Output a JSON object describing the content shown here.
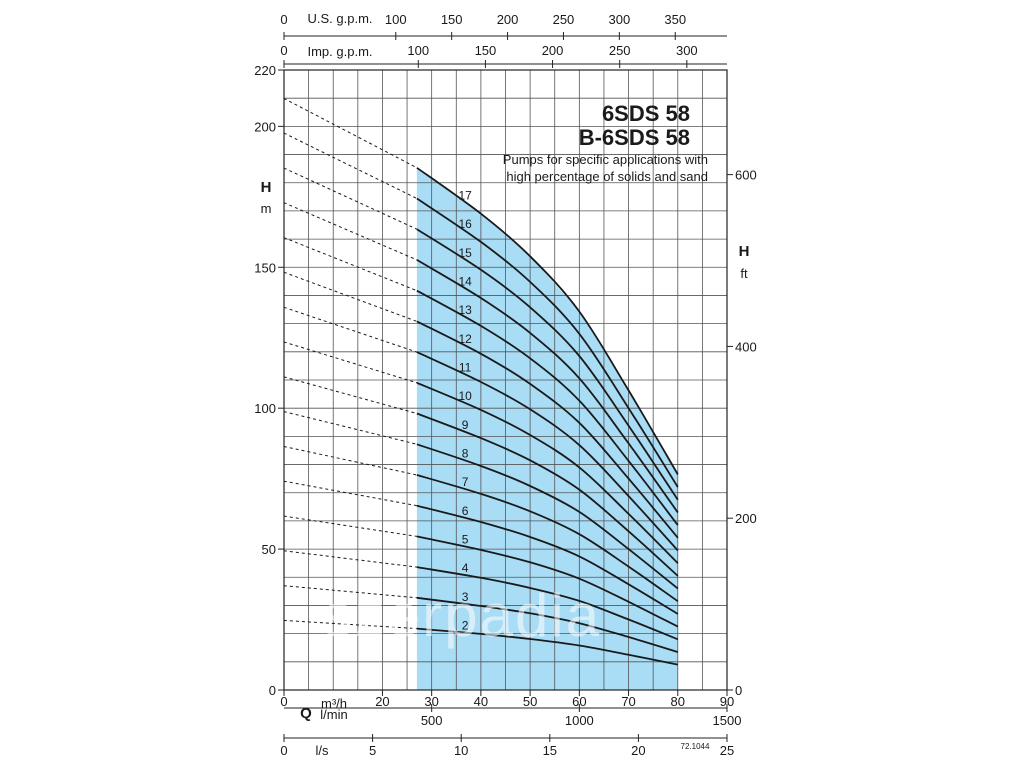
{
  "chart_data": {
    "type": "line",
    "title_lines": [
      "6SDS 58",
      "B-6SDS 58"
    ],
    "subtitle_lines": [
      "Pumps for specific applications with",
      "high percentage of solids and sand"
    ],
    "y_label": "H",
    "y_unit": "m",
    "y2_label": "H",
    "y2_unit": "ft",
    "ylim": [
      0,
      220
    ],
    "y_ticks": [
      0,
      50,
      100,
      150,
      200,
      220
    ],
    "y2_ticks": [
      0,
      200,
      400,
      600
    ],
    "x_label": "Q",
    "x_unit_top": "m³/h",
    "x_unit_bottom": "l/min",
    "xlim": [
      0,
      90
    ],
    "x_ticks_m3h": [
      0,
      20,
      30,
      40,
      50,
      60,
      70,
      80,
      90
    ],
    "x_ticks_lmin": [
      500,
      1000,
      1500
    ],
    "ls_label": "l/s",
    "x_ticks_ls": [
      0,
      5,
      10,
      15,
      20,
      25
    ],
    "usgpm_label": "U.S. g.p.m.",
    "x_ticks_usgpm": [
      0,
      100,
      150,
      200,
      250,
      300,
      350
    ],
    "impgpm_label": "Imp. g.p.m.",
    "x_ticks_impgpm": [
      0,
      100,
      150,
      200,
      250,
      300
    ],
    "operating_range": [
      27,
      80
    ],
    "shade_color": "#a9dcf5",
    "curve_color": "#1a1a1a",
    "grid": true,
    "code": "72.1044",
    "watermark": "szerpadia",
    "stage_labels": [
      "2",
      "3",
      "4",
      "5",
      "6",
      "7",
      "8",
      "9",
      "10",
      "11",
      "12",
      "13",
      "14",
      "15",
      "16",
      "17"
    ],
    "series": [
      {
        "name": "2",
        "points": [
          [
            0,
            24.7
          ],
          [
            27,
            21.8
          ],
          [
            40,
            19.9
          ],
          [
            50,
            18.1
          ],
          [
            60,
            15.8
          ],
          [
            70,
            12.5
          ],
          [
            80,
            9.0
          ]
        ]
      },
      {
        "name": "3",
        "points": [
          [
            0,
            37.0
          ],
          [
            27,
            32.7
          ],
          [
            40,
            29.8
          ],
          [
            50,
            27.2
          ],
          [
            60,
            23.7
          ],
          [
            70,
            18.8
          ],
          [
            80,
            13.5
          ]
        ]
      },
      {
        "name": "4",
        "points": [
          [
            0,
            49.4
          ],
          [
            27,
            43.6
          ],
          [
            40,
            39.8
          ],
          [
            50,
            36.2
          ],
          [
            60,
            31.6
          ],
          [
            70,
            25.0
          ],
          [
            80,
            18.0
          ]
        ]
      },
      {
        "name": "5",
        "points": [
          [
            0,
            61.7
          ],
          [
            27,
            54.5
          ],
          [
            40,
            49.7
          ],
          [
            50,
            45.3
          ],
          [
            60,
            39.5
          ],
          [
            70,
            31.3
          ],
          [
            80,
            22.5
          ]
        ]
      },
      {
        "name": "6",
        "points": [
          [
            0,
            74.1
          ],
          [
            27,
            65.4
          ],
          [
            40,
            59.6
          ],
          [
            50,
            54.3
          ],
          [
            60,
            47.4
          ],
          [
            70,
            37.5
          ],
          [
            80,
            27.0
          ]
        ]
      },
      {
        "name": "7",
        "points": [
          [
            0,
            86.4
          ],
          [
            27,
            76.3
          ],
          [
            40,
            69.6
          ],
          [
            50,
            63.4
          ],
          [
            60,
            55.3
          ],
          [
            70,
            43.8
          ],
          [
            80,
            31.5
          ]
        ]
      },
      {
        "name": "8",
        "points": [
          [
            0,
            98.8
          ],
          [
            27,
            87.2
          ],
          [
            40,
            79.5
          ],
          [
            50,
            72.4
          ],
          [
            60,
            63.2
          ],
          [
            70,
            50.0
          ],
          [
            80,
            36.0
          ]
        ]
      },
      {
        "name": "9",
        "points": [
          [
            0,
            111.1
          ],
          [
            27,
            98.1
          ],
          [
            40,
            89.4
          ],
          [
            50,
            81.5
          ],
          [
            60,
            71.1
          ],
          [
            70,
            56.3
          ],
          [
            80,
            40.5
          ]
        ]
      },
      {
        "name": "10",
        "points": [
          [
            0,
            123.5
          ],
          [
            27,
            109.0
          ],
          [
            40,
            99.4
          ],
          [
            50,
            90.5
          ],
          [
            60,
            79.0
          ],
          [
            70,
            62.5
          ],
          [
            80,
            45.0
          ]
        ]
      },
      {
        "name": "11",
        "points": [
          [
            0,
            135.8
          ],
          [
            27,
            119.9
          ],
          [
            40,
            109.3
          ],
          [
            50,
            99.6
          ],
          [
            60,
            86.9
          ],
          [
            70,
            68.8
          ],
          [
            80,
            49.5
          ]
        ]
      },
      {
        "name": "12",
        "points": [
          [
            0,
            148.2
          ],
          [
            27,
            130.8
          ],
          [
            40,
            119.3
          ],
          [
            50,
            108.6
          ],
          [
            60,
            94.8
          ],
          [
            70,
            75.0
          ],
          [
            80,
            54.0
          ]
        ]
      },
      {
        "name": "13",
        "points": [
          [
            0,
            160.5
          ],
          [
            27,
            141.7
          ],
          [
            40,
            129.2
          ],
          [
            50,
            117.7
          ],
          [
            60,
            102.7
          ],
          [
            70,
            81.3
          ],
          [
            80,
            58.5
          ]
        ]
      },
      {
        "name": "14",
        "points": [
          [
            0,
            172.9
          ],
          [
            27,
            152.6
          ],
          [
            40,
            139.1
          ],
          [
            50,
            126.7
          ],
          [
            60,
            110.6
          ],
          [
            70,
            87.5
          ],
          [
            80,
            63.0
          ]
        ]
      },
      {
        "name": "15",
        "points": [
          [
            0,
            185.2
          ],
          [
            27,
            163.5
          ],
          [
            40,
            149.1
          ],
          [
            50,
            135.8
          ],
          [
            60,
            118.5
          ],
          [
            70,
            93.8
          ],
          [
            80,
            67.5
          ]
        ]
      },
      {
        "name": "16",
        "points": [
          [
            0,
            197.6
          ],
          [
            27,
            174.4
          ],
          [
            40,
            159.0
          ],
          [
            50,
            144.8
          ],
          [
            60,
            126.4
          ],
          [
            70,
            100.0
          ],
          [
            80,
            72.0
          ]
        ]
      },
      {
        "name": "17",
        "points": [
          [
            0,
            209.9
          ],
          [
            27,
            185.3
          ],
          [
            40,
            169.0
          ],
          [
            50,
            153.9
          ],
          [
            60,
            134.3
          ],
          [
            70,
            106.3
          ],
          [
            80,
            76.5
          ]
        ]
      }
    ]
  }
}
